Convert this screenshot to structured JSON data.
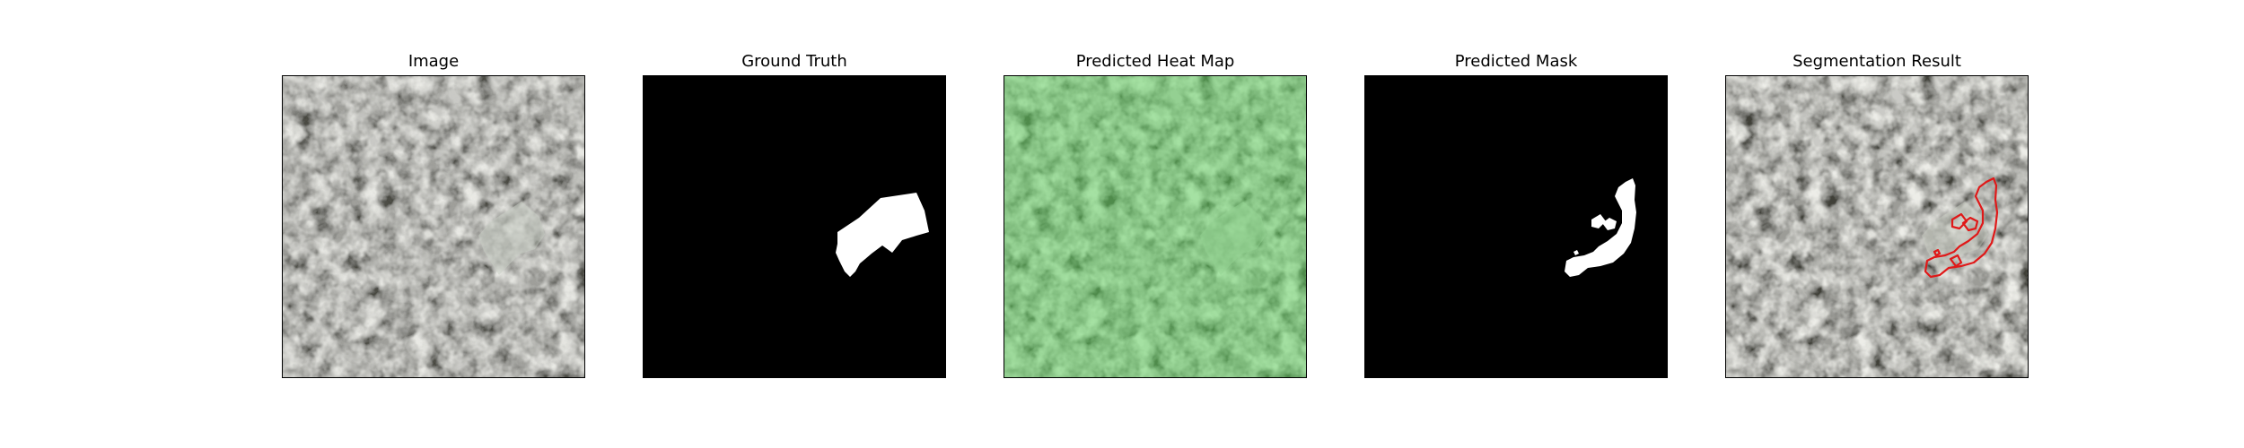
{
  "figure": {
    "panels": [
      {
        "key": "image",
        "title": "Image",
        "kind": "aerial-photo"
      },
      {
        "key": "ground_truth",
        "title": "Ground Truth",
        "kind": "binary-mask"
      },
      {
        "key": "heat_map",
        "title": "Predicted Heat Map",
        "kind": "heat-overlay"
      },
      {
        "key": "pred_mask",
        "title": "Predicted Mask",
        "kind": "binary-mask"
      },
      {
        "key": "segmentation",
        "title": "Segmentation Result",
        "kind": "contour-overlay"
      }
    ],
    "colors": {
      "photo_base": "#8e9189",
      "photo_dark": "#3c3d39",
      "heat_tint": "#5dd65d",
      "mask_background": "#000000",
      "mask_foreground": "#ffffff",
      "contour": "#e01818"
    }
  }
}
